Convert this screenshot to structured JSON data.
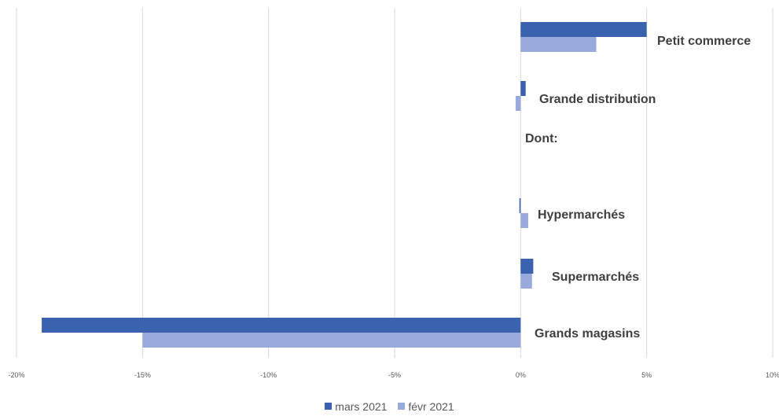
{
  "chart_data": {
    "type": "bar",
    "orientation": "horizontal",
    "categories": [
      "Petit commerce",
      "Grande distribution",
      "Dont:",
      "Hypermarchés",
      "Supermarchés",
      "Grands magasins"
    ],
    "series": [
      {
        "name": "mars 2021",
        "color": "#3A62AF",
        "values": [
          5.0,
          0.2,
          null,
          -0.05,
          0.5,
          -19.0
        ]
      },
      {
        "name": "févr 2021",
        "color": "#98A9DC",
        "values": [
          3.0,
          -0.2,
          null,
          0.3,
          0.45,
          -15.0
        ]
      }
    ],
    "x_ticks": [
      "-20%",
      "-15%",
      "-10%",
      "-5%",
      "0%",
      "5%",
      "10%"
    ],
    "xlim": [
      -20,
      10
    ],
    "grid": true,
    "legend_position": "bottom"
  }
}
